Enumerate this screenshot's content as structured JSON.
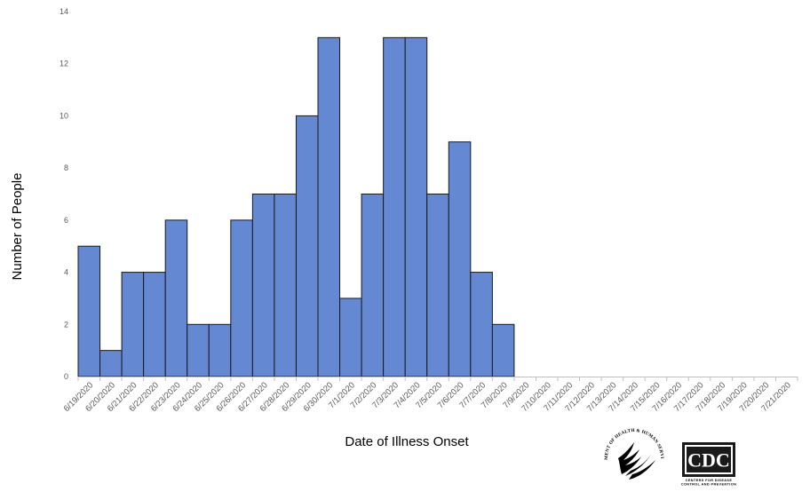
{
  "chart_data": {
    "type": "bar",
    "xlabel": "Date of Illness Onset",
    "ylabel": "Number of People",
    "ylim": [
      0,
      14
    ],
    "yticks": [
      0,
      2,
      4,
      6,
      8,
      10,
      12,
      14
    ],
    "grid": false,
    "categories": [
      "6/19/2020",
      "6/20/2020",
      "6/21/2020",
      "6/22/2020",
      "6/23/2020",
      "6/24/2020",
      "6/25/2020",
      "6/26/2020",
      "6/27/2020",
      "6/28/2020",
      "6/29/2020",
      "6/30/2020",
      "7/1/2020",
      "7/2/2020",
      "7/3/2020",
      "7/4/2020",
      "7/5/2020",
      "7/6/2020",
      "7/7/2020",
      "7/8/2020",
      "7/9/2020",
      "7/10/2020",
      "7/11/2020",
      "7/12/2020",
      "7/13/2020",
      "7/14/2020",
      "7/15/2020",
      "7/16/2020",
      "7/17/2020",
      "7/18/2020",
      "7/19/2020",
      "7/20/2020",
      "7/21/2020"
    ],
    "values": [
      5,
      1,
      4,
      4,
      6,
      2,
      2,
      6,
      7,
      7,
      10,
      13,
      3,
      7,
      13,
      13,
      7,
      9,
      4,
      2,
      0,
      0,
      0,
      0,
      0,
      0,
      0,
      0,
      0,
      0,
      0,
      0,
      0
    ],
    "colors": {
      "bar": "#6488d2",
      "bar_outline": "#1a1a1a"
    }
  },
  "logos": {
    "hhs": {
      "text": "DEPARTMENT OF HEALTH & HUMAN SERVICES USA",
      "icon": "hhs-eagle-seal-icon"
    },
    "cdc": {
      "text": "CDC",
      "subtext_1": "CENTERS FOR DISEASE",
      "subtext_2": "CONTROL AND PREVENTION",
      "icon": "cdc-logo-icon"
    }
  }
}
